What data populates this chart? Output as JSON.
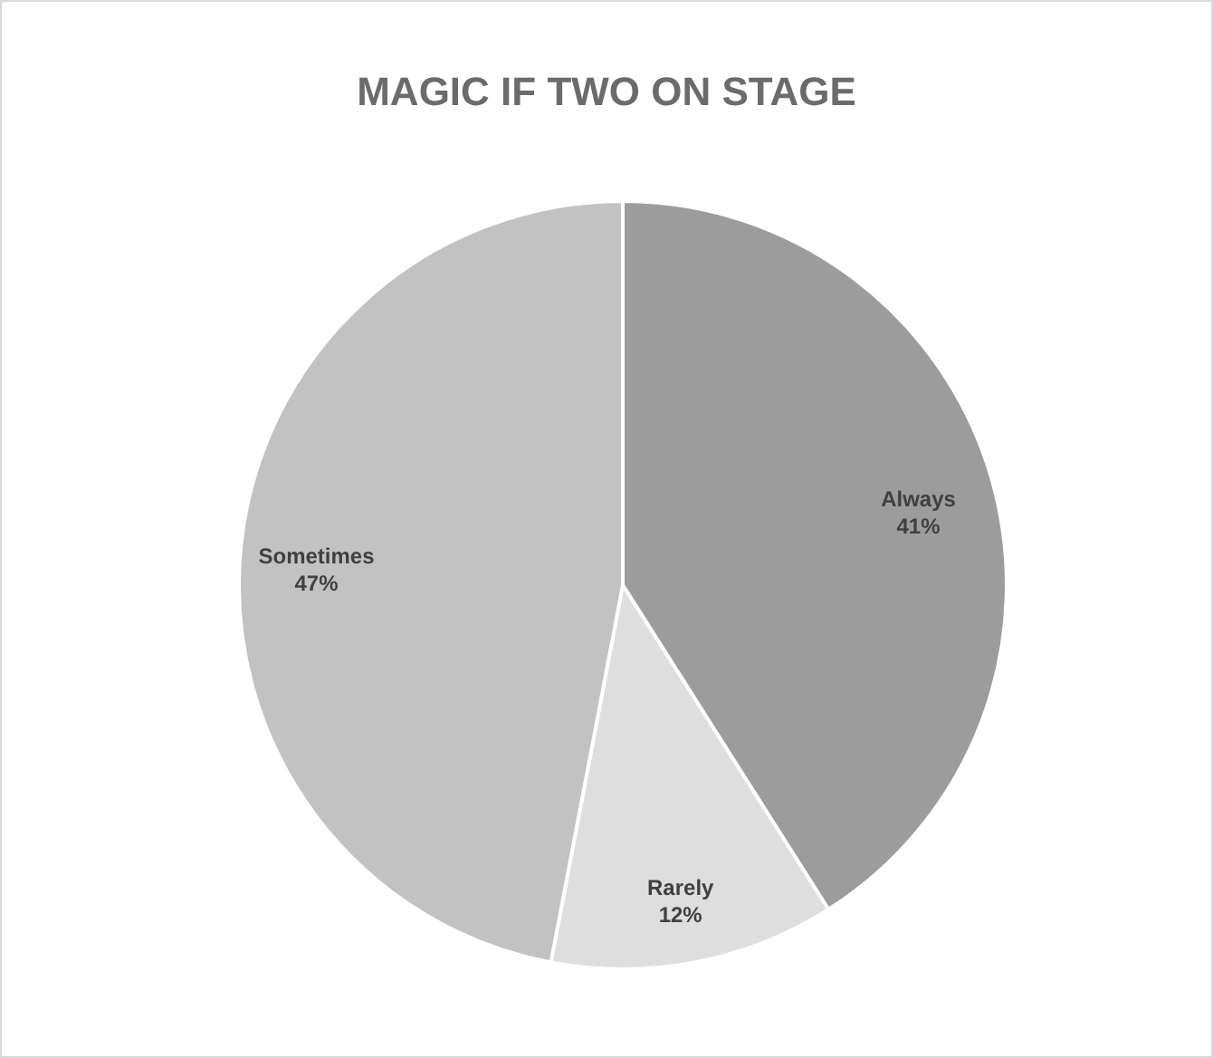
{
  "chart_data": {
    "type": "pie",
    "title": "MAGIC IF TWO ON STAGE",
    "categories": [
      "Always",
      "Rarely",
      "Sometimes"
    ],
    "values": [
      41,
      12,
      47
    ],
    "value_labels": [
      "41%",
      "12%",
      "47%"
    ],
    "colors": [
      "#9c9c9c",
      "#dedede",
      "#c2c2c2"
    ],
    "legend": false
  }
}
